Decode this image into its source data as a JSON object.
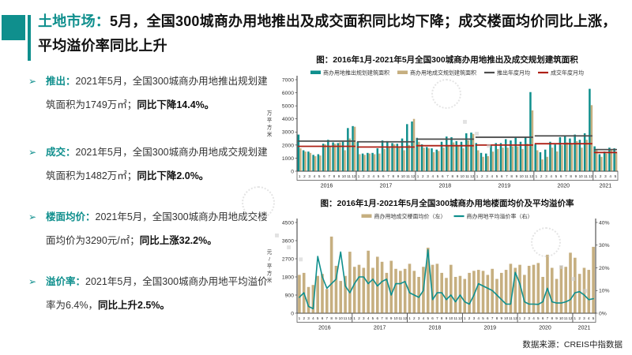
{
  "slide": {
    "title_prefix": "土地市场：",
    "title_rest": "5月，全国300城商办用地推出及成交面积同比均下降；成交楼面均价同比上涨，平均溢价率同比上升",
    "source": "数据来源：CREIS中指数据"
  },
  "ui": {
    "bullet_marker": "➢",
    "watermark_trail": "◆ ◆ ◆"
  },
  "colors": {
    "accent_teal": "#0F8F8D",
    "bar_tan": "#C6AF80",
    "line_gray": "#4D4D4D",
    "line_red": "#AE2016"
  },
  "bullets": [
    {
      "label": "推出：",
      "text": "2021年5月，全国300城商办用地推出规划建筑面积为1749万㎡；",
      "bold": "同比下降14.4%。"
    },
    {
      "label": "成交：",
      "text": "2021年5月，全国300城商办用地成交规划建筑面积为1482万㎡；",
      "bold": "同比下降2.0%。"
    },
    {
      "label": "楼面均价：",
      "text": "2021年5月，全国300城商办用地成交楼面均价为3290元/㎡；",
      "bold": "同比上涨32.2%。"
    },
    {
      "label": "溢价率：",
      "text": "2021年5月，全国300城商办用地平均溢价率为6.4%，",
      "bold": "同比上升2.5%。"
    }
  ],
  "chart_data": [
    {
      "type": "bar",
      "title": "图：2016年1月-2021年5月全国300城商办用地推出及成交规划建筑面积",
      "ylabel": "万平方米",
      "ylim_left": [
        0,
        7000
      ],
      "yticks_left": [
        0,
        1000,
        2000,
        3000,
        4000,
        5000,
        6000,
        7000
      ],
      "grid": false,
      "legend_position": "top",
      "years": [
        "2016",
        "2017",
        "2018",
        "2019",
        "2020",
        "2021"
      ],
      "months_per_year": [
        12,
        12,
        12,
        12,
        12,
        5
      ],
      "series": [
        {
          "name": "商办用地推出规划建筑面积",
          "type": "bar",
          "color": "#0F8F8D",
          "values": [
            2800,
            1600,
            1500,
            1250,
            1300,
            2100,
            2400,
            2200,
            2150,
            2250,
            3300,
            3450,
            2250,
            1350,
            1400,
            1400,
            1750,
            2350,
            2300,
            2150,
            2100,
            2500,
            3600,
            3800,
            2550,
            2050,
            1850,
            1750,
            1650,
            2250,
            2650,
            2600,
            2300,
            2250,
            2900,
            2950,
            2150,
            1400,
            1350,
            2000,
            2150,
            2150,
            2450,
            2350,
            2550,
            2250,
            2650,
            6050,
            2050,
            1450,
            1650,
            2250,
            2043,
            2600,
            2700,
            2500,
            2800,
            2400,
            2900,
            6300,
            1900,
            1300,
            1500,
            1800,
            1749
          ]
        },
        {
          "name": "商办用地成交规划建筑面积",
          "type": "bar",
          "color": "#C6AF80",
          "values": [
            1750,
            1500,
            1400,
            1150,
            1200,
            2050,
            1900,
            2100,
            2200,
            1600,
            2500,
            3400,
            1300,
            1250,
            1350,
            1300,
            1350,
            1700,
            1800,
            2050,
            1850,
            1600,
            2000,
            4000,
            2250,
            1800,
            1750,
            1450,
            1550,
            1800,
            2000,
            2200,
            1900,
            1750,
            2350,
            2850,
            1600,
            1100,
            1150,
            1500,
            1700,
            1800,
            1800,
            1900,
            1900,
            1700,
            2100,
            4650,
            1600,
            900,
            1100,
            1800,
            1512,
            2000,
            2200,
            2100,
            2300,
            1800,
            2400,
            5050,
            1600,
            1100,
            1350,
            1600,
            1482
          ]
        },
        {
          "name": "推出年度月均",
          "type": "yearline",
          "color": "#4D4D4D",
          "values": [
            2300,
            2250,
            2450,
            2600,
            2700,
            1650
          ]
        },
        {
          "name": "成交年度月均",
          "type": "yearline",
          "color": "#AE2016",
          "values": [
            1900,
            1850,
            1950,
            2000,
            2100,
            1430
          ]
        }
      ]
    },
    {
      "type": "bar+line",
      "title": "图：2016年1月-2021年5月全国300城商办用地楼面均价及平均溢价率",
      "ylabel": "元/平方米",
      "ylim_left": [
        0,
        4500
      ],
      "yticks_left": [
        0,
        900,
        1800,
        2700,
        3600,
        4500
      ],
      "ylim_right": [
        0,
        40
      ],
      "yticks_right": [
        0,
        10,
        20,
        30,
        40
      ],
      "ytick_right_suffix": "%",
      "grid": false,
      "legend_position": "top",
      "years": [
        "2016",
        "2017",
        "2018",
        "2019",
        "2020",
        "2021"
      ],
      "months_per_year": [
        12,
        12,
        12,
        12,
        12,
        5
      ],
      "series": [
        {
          "name": "商办用地成交楼面均价（左）",
          "type": "bar",
          "axis": "left",
          "color": "#C6AF80",
          "values": [
            1900,
            2000,
            1300,
            1400,
            1850,
            1950,
            1200,
            3800,
            2350,
            1600,
            1850,
            3050,
            2300,
            2400,
            2250,
            3100,
            2250,
            2800,
            2550,
            2000,
            2600,
            2200,
            2100,
            2200,
            2450,
            2100,
            1800,
            2300,
            3250,
            2400,
            2450,
            2000,
            1750,
            2400,
            1800,
            1850,
            1700,
            2000,
            2100,
            2150,
            2100,
            1900,
            2200,
            1700,
            2000,
            2150,
            2450,
            2250,
            2400,
            1900,
            2350,
            2400,
            2490,
            1800,
            2900,
            2250,
            1700,
            2350,
            2300,
            3000,
            2750,
            1950,
            2250,
            2150,
            3290
          ]
        },
        {
          "name": "商办用地平均溢价率（右）",
          "type": "line",
          "axis": "right",
          "color": "#0F8F8D",
          "values": [
            7,
            9,
            3,
            2,
            25,
            16,
            11,
            13,
            15,
            27,
            12,
            9,
            13,
            16,
            16,
            13,
            15,
            12,
            14,
            15,
            8,
            13,
            13,
            14,
            9,
            8,
            7,
            10,
            28,
            6,
            9,
            9,
            6,
            8,
            5,
            8,
            5,
            4,
            8,
            13,
            12,
            11,
            10,
            8,
            6,
            4,
            4,
            18,
            13,
            5,
            4,
            4,
            3.9,
            5,
            11,
            5,
            4.5,
            4.5,
            5,
            6,
            9,
            9.5,
            8,
            6,
            6.4
          ]
        }
      ]
    }
  ]
}
